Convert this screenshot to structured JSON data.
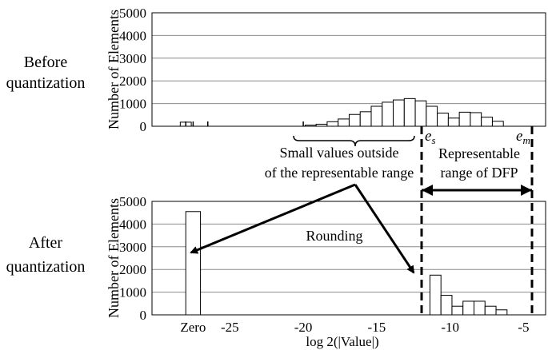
{
  "chart_data": [
    {
      "type": "bar",
      "row_label": [
        "Before",
        "quantization"
      ],
      "ylabel": "Number of Elements",
      "ylim": [
        0,
        5000
      ],
      "yticks": [
        0,
        1000,
        2000,
        3000,
        4000,
        5000
      ],
      "grid": true,
      "series": [
        {
          "x": [
            -28,
            -19.5,
            -18.75,
            -18,
            -17.25,
            -16.5,
            -15.75,
            -15,
            -14.25,
            -13.5,
            -12.75,
            -12,
            -11.25,
            -10.5,
            -9.75,
            -9,
            -8.25,
            -7.5,
            -6.75,
            -6,
            -5.25
          ],
          "values": [
            180,
            50,
            90,
            200,
            320,
            520,
            640,
            880,
            1060,
            1160,
            1220,
            1120,
            880,
            580,
            360,
            620,
            600,
            400,
            220,
            0,
            0
          ]
        }
      ],
      "tick_marks": [
        -28,
        -27.5,
        -26.5,
        -20
      ],
      "brace_label": [
        "Small values outside",
        "of the representable range"
      ],
      "range_label": [
        "Representable",
        "range of DFP"
      ],
      "range_bounds": [
        "es",
        "em"
      ]
    },
    {
      "type": "bar",
      "row_label": [
        "After",
        "quantization"
      ],
      "ylabel": "Number of Elements",
      "xlabel": "log 2(|Value|)",
      "ylim": [
        0,
        5000
      ],
      "yticks": [
        0,
        1000,
        2000,
        3000,
        4000,
        5000
      ],
      "xticks": [
        "Zero",
        "-25",
        "-20",
        "-15",
        "-10",
        "-5"
      ],
      "grid": true,
      "series": [
        {
          "categories": [
            "Zero",
            "-11",
            "-10.25",
            "-9.5",
            "-8.75",
            "-8",
            "-7.25",
            "-6.5",
            "-5.75"
          ],
          "values": [
            4550,
            1750,
            860,
            380,
            600,
            600,
            380,
            220,
            0
          ]
        }
      ],
      "annotation": "Rounding"
    }
  ],
  "label_es": {
    "main": "e",
    "sub": "s"
  },
  "label_em": {
    "main": "e",
    "sub": "m"
  }
}
